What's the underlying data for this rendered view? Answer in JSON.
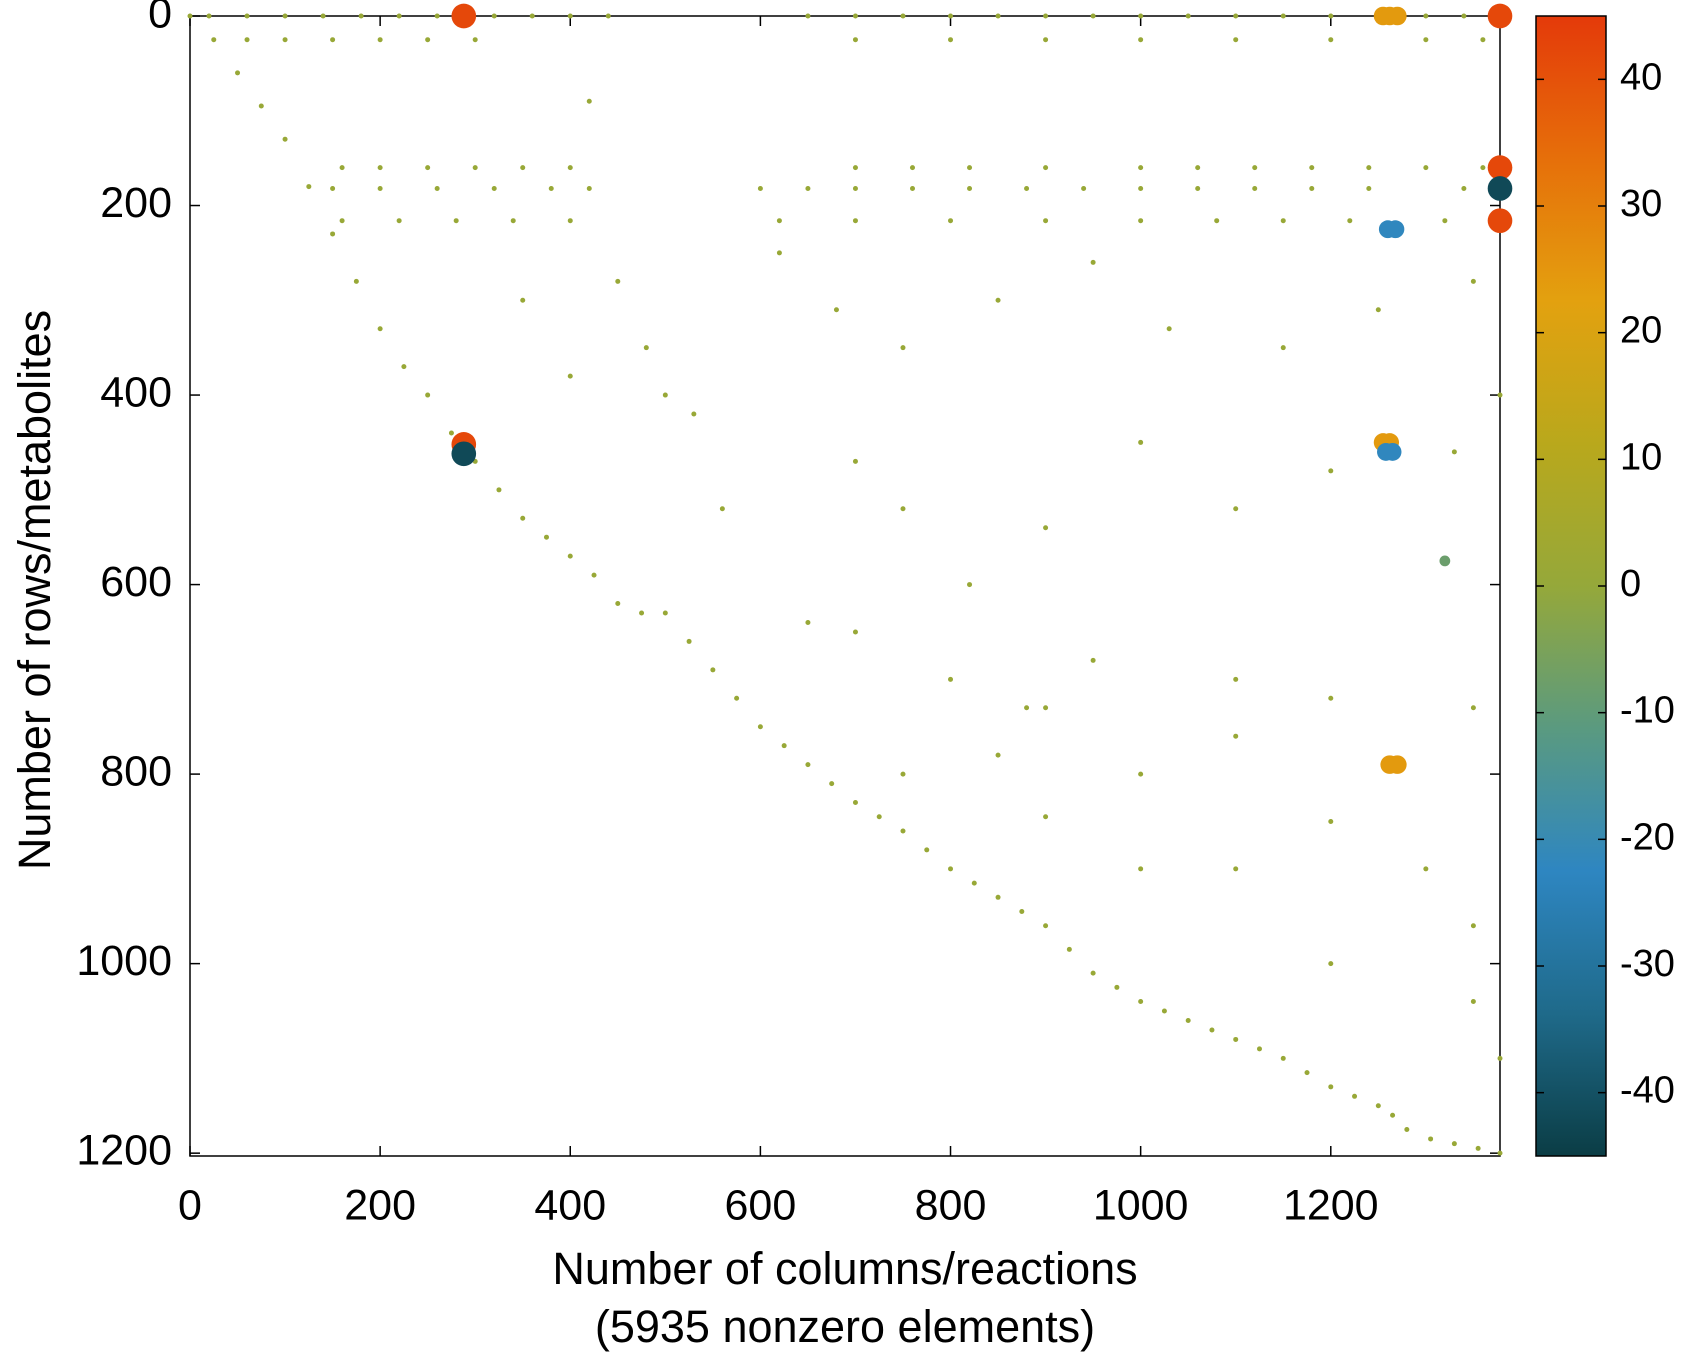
{
  "chart_data": {
    "type": "scatter",
    "xlabel": [
      "Number of columns/reactions",
      "(5935 nonzero elements)"
    ],
    "ylabel": "Number of rows/metabolites",
    "xlim": [
      0,
      1378
    ],
    "ylim": [
      0,
      1203
    ],
    "y_inverted": true,
    "xticks": [
      0,
      200,
      400,
      600,
      800,
      1000,
      1200
    ],
    "yticks": [
      0,
      200,
      400,
      600,
      800,
      1000,
      1200
    ],
    "clim": [
      -45,
      45
    ],
    "cticks": [
      -40,
      -30,
      -20,
      -10,
      0,
      10,
      20,
      30,
      40
    ],
    "colormap": [
      "#0b3d45",
      "#1f6a8a",
      "#2e86c1",
      "#5a9a80",
      "#95a83a",
      "#b9a81c",
      "#e3a10f",
      "#e66f0a",
      "#e43a0a"
    ],
    "points": [
      [
        20,
        0,
        1
      ],
      [
        60,
        0,
        1
      ],
      [
        100,
        0,
        1
      ],
      [
        140,
        0,
        1
      ],
      [
        180,
        0,
        1
      ],
      [
        220,
        0,
        1
      ],
      [
        260,
        0,
        1
      ],
      [
        320,
        0,
        1
      ],
      [
        360,
        0,
        1
      ],
      [
        400,
        0,
        1
      ],
      [
        440,
        0,
        1
      ],
      [
        650,
        0,
        1
      ],
      [
        700,
        0,
        1
      ],
      [
        750,
        0,
        1
      ],
      [
        800,
        0,
        1
      ],
      [
        850,
        0,
        1
      ],
      [
        900,
        0,
        1
      ],
      [
        950,
        0,
        1
      ],
      [
        1000,
        0,
        1
      ],
      [
        1050,
        0,
        1
      ],
      [
        1100,
        0,
        1
      ],
      [
        1150,
        0,
        1
      ],
      [
        1200,
        0,
        1
      ],
      [
        1300,
        0,
        1
      ],
      [
        1340,
        0,
        1
      ],
      [
        60,
        25,
        1
      ],
      [
        100,
        25,
        1
      ],
      [
        150,
        25,
        1
      ],
      [
        200,
        25,
        1
      ],
      [
        250,
        25,
        1
      ],
      [
        300,
        25,
        1
      ],
      [
        700,
        25,
        1
      ],
      [
        800,
        25,
        1
      ],
      [
        900,
        25,
        1
      ],
      [
        1000,
        25,
        1
      ],
      [
        1100,
        25,
        1
      ],
      [
        1200,
        25,
        1
      ],
      [
        1300,
        25,
        1
      ],
      [
        1360,
        25,
        1
      ],
      [
        160,
        160,
        1
      ],
      [
        200,
        160,
        1
      ],
      [
        250,
        160,
        1
      ],
      [
        300,
        160,
        1
      ],
      [
        350,
        160,
        1
      ],
      [
        400,
        160,
        1
      ],
      [
        700,
        160,
        1
      ],
      [
        760,
        160,
        1
      ],
      [
        820,
        160,
        1
      ],
      [
        900,
        160,
        1
      ],
      [
        1000,
        160,
        1
      ],
      [
        1060,
        160,
        1
      ],
      [
        1120,
        160,
        1
      ],
      [
        1180,
        160,
        1
      ],
      [
        1240,
        160,
        1
      ],
      [
        1300,
        160,
        1
      ],
      [
        1360,
        160,
        1
      ],
      [
        150,
        182,
        1
      ],
      [
        200,
        182,
        1
      ],
      [
        260,
        182,
        1
      ],
      [
        320,
        182,
        1
      ],
      [
        380,
        182,
        1
      ],
      [
        420,
        182,
        1
      ],
      [
        600,
        182,
        1
      ],
      [
        650,
        182,
        1
      ],
      [
        700,
        182,
        1
      ],
      [
        760,
        182,
        1
      ],
      [
        820,
        182,
        1
      ],
      [
        880,
        182,
        1
      ],
      [
        940,
        182,
        1
      ],
      [
        1000,
        182,
        1
      ],
      [
        1060,
        182,
        1
      ],
      [
        1120,
        182,
        1
      ],
      [
        1180,
        182,
        1
      ],
      [
        1240,
        182,
        1
      ],
      [
        1340,
        182,
        1
      ],
      [
        160,
        216,
        1
      ],
      [
        220,
        216,
        1
      ],
      [
        280,
        216,
        1
      ],
      [
        340,
        216,
        1
      ],
      [
        400,
        216,
        1
      ],
      [
        620,
        216,
        1
      ],
      [
        700,
        216,
        1
      ],
      [
        800,
        216,
        1
      ],
      [
        900,
        216,
        1
      ],
      [
        1000,
        216,
        1
      ],
      [
        1080,
        216,
        1
      ],
      [
        1150,
        216,
        1
      ],
      [
        1220,
        216,
        1
      ],
      [
        1320,
        216,
        1
      ],
      [
        0,
        0,
        1
      ],
      [
        25,
        25,
        1
      ],
      [
        50,
        60,
        1
      ],
      [
        75,
        95,
        1
      ],
      [
        100,
        130,
        1
      ],
      [
        125,
        180,
        1
      ],
      [
        150,
        230,
        1
      ],
      [
        175,
        280,
        1
      ],
      [
        200,
        330,
        1
      ],
      [
        225,
        370,
        1
      ],
      [
        250,
        400,
        1
      ],
      [
        275,
        440,
        1
      ],
      [
        300,
        470,
        1
      ],
      [
        325,
        500,
        1
      ],
      [
        350,
        530,
        1
      ],
      [
        375,
        550,
        1
      ],
      [
        400,
        570,
        1
      ],
      [
        425,
        590,
        1
      ],
      [
        450,
        620,
        1
      ],
      [
        475,
        630,
        1
      ],
      [
        500,
        630,
        1
      ],
      [
        525,
        660,
        1
      ],
      [
        550,
        690,
        1
      ],
      [
        575,
        720,
        1
      ],
      [
        600,
        750,
        1
      ],
      [
        625,
        770,
        1
      ],
      [
        650,
        790,
        1
      ],
      [
        675,
        810,
        1
      ],
      [
        700,
        830,
        1
      ],
      [
        725,
        845,
        1
      ],
      [
        750,
        860,
        1
      ],
      [
        775,
        880,
        1
      ],
      [
        800,
        900,
        1
      ],
      [
        825,
        915,
        1
      ],
      [
        850,
        930,
        1
      ],
      [
        875,
        945,
        1
      ],
      [
        900,
        960,
        1
      ],
      [
        925,
        985,
        1
      ],
      [
        950,
        1010,
        1
      ],
      [
        975,
        1025,
        1
      ],
      [
        1000,
        1040,
        1
      ],
      [
        1025,
        1050,
        1
      ],
      [
        1050,
        1060,
        1
      ],
      [
        1075,
        1070,
        1
      ],
      [
        1100,
        1080,
        1
      ],
      [
        1125,
        1090,
        1
      ],
      [
        1150,
        1100,
        1
      ],
      [
        1175,
        1115,
        1
      ],
      [
        1200,
        1130,
        1
      ],
      [
        1225,
        1140,
        1
      ],
      [
        1250,
        1150,
        1
      ],
      [
        1265,
        1160,
        1
      ],
      [
        1280,
        1175,
        1
      ],
      [
        1305,
        1185,
        1
      ],
      [
        1330,
        1190,
        1
      ],
      [
        1355,
        1195,
        1
      ],
      [
        1378,
        1200,
        1
      ],
      [
        420,
        90,
        1
      ],
      [
        700,
        470,
        1
      ],
      [
        750,
        520,
        1
      ],
      [
        820,
        600,
        1
      ],
      [
        900,
        540,
        1
      ],
      [
        1000,
        450,
        1
      ],
      [
        1100,
        520,
        1
      ],
      [
        1200,
        480,
        1
      ],
      [
        1330,
        460,
        1
      ],
      [
        650,
        640,
        1
      ],
      [
        700,
        650,
        1
      ],
      [
        800,
        700,
        1
      ],
      [
        950,
        680,
        1
      ],
      [
        1100,
        700,
        1
      ],
      [
        1200,
        720,
        1
      ],
      [
        1350,
        730,
        1
      ],
      [
        880,
        730,
        1
      ],
      [
        900,
        730,
        1
      ],
      [
        900,
        845,
        1
      ],
      [
        1000,
        800,
        1
      ],
      [
        1100,
        760,
        1
      ],
      [
        1200,
        850,
        1
      ],
      [
        1300,
        900,
        1
      ],
      [
        1350,
        960,
        1
      ],
      [
        1100,
        900,
        1
      ],
      [
        1000,
        900,
        1
      ],
      [
        1200,
        1000,
        1
      ],
      [
        1350,
        1040,
        1
      ],
      [
        1378,
        1100,
        1
      ],
      [
        480,
        350,
        1
      ],
      [
        500,
        400,
        1
      ],
      [
        530,
        420,
        1
      ],
      [
        560,
        520,
        1
      ],
      [
        450,
        280,
        1
      ],
      [
        400,
        380,
        1
      ],
      [
        350,
        300,
        1
      ],
      [
        620,
        250,
        1
      ],
      [
        680,
        310,
        1
      ],
      [
        750,
        350,
        1
      ],
      [
        850,
        300,
        1
      ],
      [
        950,
        260,
        1
      ],
      [
        1030,
        330,
        1
      ],
      [
        1150,
        350,
        1
      ],
      [
        1250,
        310,
        1
      ],
      [
        1350,
        280,
        1
      ],
      [
        1378,
        400,
        1
      ],
      [
        750,
        800,
        1
      ],
      [
        850,
        780,
        1
      ],
      [
        288,
        0,
        42
      ],
      [
        1255,
        0,
        24
      ],
      [
        1262,
        0,
        24
      ],
      [
        1270,
        0,
        24
      ],
      [
        1378,
        0,
        42
      ],
      [
        1378,
        160,
        42
      ],
      [
        1378,
        182,
        -42
      ],
      [
        1378,
        216,
        42
      ],
      [
        1260,
        225,
        -22
      ],
      [
        1268,
        225,
        -22
      ],
      [
        288,
        452,
        42
      ],
      [
        288,
        462,
        -42
      ],
      [
        1255,
        450,
        24
      ],
      [
        1262,
        450,
        24
      ],
      [
        1258,
        460,
        -22
      ],
      [
        1265,
        460,
        -22
      ],
      [
        1262,
        790,
        24
      ],
      [
        1270,
        790,
        24
      ],
      [
        1320,
        575,
        -8
      ]
    ]
  }
}
